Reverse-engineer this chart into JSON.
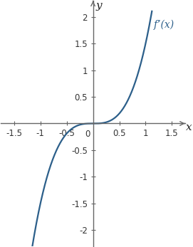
{
  "title": "",
  "xlabel": "x",
  "ylabel": "y",
  "label": "f’(x)",
  "xlim": [
    -1.75,
    1.75
  ],
  "ylim": [
    -2.3,
    2.3
  ],
  "xticks": [
    -1.5,
    -1.0,
    -0.5,
    0.5,
    1.0,
    1.5
  ],
  "yticks": [
    -2,
    -1.5,
    -1,
    -0.5,
    0.5,
    1,
    1.5,
    2
  ],
  "curve_color": "#2c5f8a",
  "curve_linewidth": 1.6,
  "axis_color": "#666666",
  "background_color": "#ffffff",
  "figsize": [
    2.71,
    3.47
  ],
  "dpi": 100,
  "x_start": -1.35,
  "x_end": 1.12,
  "curve_scale": 1.5
}
